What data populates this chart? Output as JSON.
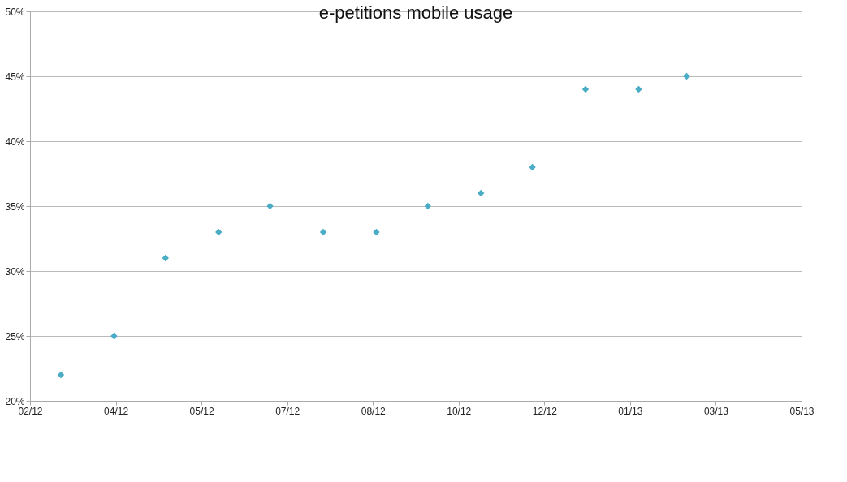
{
  "chart_data": {
    "type": "scatter",
    "title": "e-petitions mobile usage",
    "x": [
      "2012-03-01",
      "2012-04-01",
      "2012-05-01",
      "2012-06-01",
      "2012-07-01",
      "2012-08-01",
      "2012-09-01",
      "2012-10-01",
      "2012-11-01",
      "2012-12-01",
      "2013-01-01",
      "2013-02-01",
      "2013-03-01"
    ],
    "series": [
      {
        "color": "#4bacc6",
        "values": [
          22,
          25,
          31,
          33,
          35,
          33,
          33,
          35,
          36,
          38,
          44,
          44,
          45
        ]
      }
    ],
    "xlim": [
      "2012-02-12",
      "2013-05-07"
    ],
    "xticks": [
      {
        "value": "2012-02-12",
        "label": "02/12"
      },
      {
        "value": "2012-04-02",
        "label": "04/12"
      },
      {
        "value": "2012-05-22",
        "label": "05/12"
      },
      {
        "value": "2012-07-11",
        "label": "07/12"
      },
      {
        "value": "2012-08-30",
        "label": "08/12"
      },
      {
        "value": "2012-10-19",
        "label": "10/12"
      },
      {
        "value": "2012-12-08",
        "label": "12/12"
      },
      {
        "value": "2013-01-27",
        "label": "01/13"
      },
      {
        "value": "2013-03-18",
        "label": "03/13"
      },
      {
        "value": "2013-05-07",
        "label": "05/13"
      }
    ],
    "ylim": [
      20,
      50
    ],
    "yticks": [
      {
        "value": 20,
        "label": "20%"
      },
      {
        "value": 25,
        "label": "25%"
      },
      {
        "value": 30,
        "label": "30%"
      },
      {
        "value": 35,
        "label": "35%"
      },
      {
        "value": 40,
        "label": "40%"
      },
      {
        "value": 45,
        "label": "45%"
      },
      {
        "value": 50,
        "label": "50%"
      }
    ],
    "grid": "y",
    "marker": "diamond"
  }
}
